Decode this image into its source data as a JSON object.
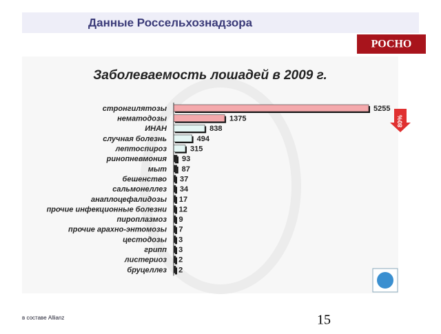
{
  "header": {
    "title": "Данные Россельхознадзора",
    "logo": "РОСНО"
  },
  "chart_data": {
    "type": "bar",
    "orientation": "horizontal",
    "title": "Заболеваемость лошадей в 2009 г.",
    "categories": [
      "стронгилятозы",
      "нематодозы",
      "ИНАН",
      "случная болезнь",
      "лептоспироз",
      "ринопневмония",
      "мыт",
      "бешенство",
      "сальмонеллез",
      "анаплоцефалидозы",
      "прочие инфекционные болезни",
      "пироплазмоз",
      "прочие арахно-энтомозы",
      "цестодозы",
      "грипп",
      "листериоз",
      "бруцеллез"
    ],
    "values": [
      5255,
      1375,
      838,
      494,
      315,
      93,
      87,
      37,
      34,
      17,
      12,
      9,
      7,
      3,
      3,
      2,
      2
    ],
    "colors": [
      "#f4a9ac",
      "#f4a9ac",
      "#e4f6f4",
      "#e4f6f4",
      "#e4f6f4",
      "#222222",
      "#222222",
      "#222222",
      "#222222",
      "#222222",
      "#222222",
      "#222222",
      "#222222",
      "#222222",
      "#222222",
      "#222222",
      "#222222"
    ],
    "annotation": "80%"
  },
  "footer": {
    "company": "в составе Allianz",
    "page": "15"
  }
}
